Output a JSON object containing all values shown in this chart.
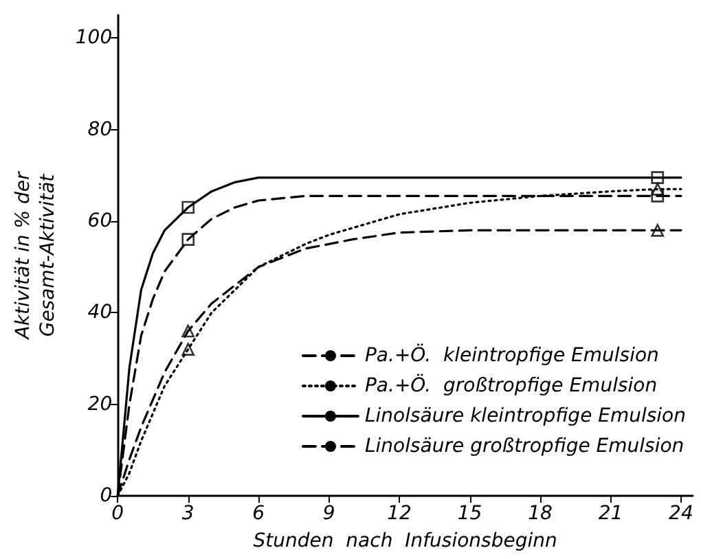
{
  "chart_data": {
    "type": "line",
    "xlabel": "Stunden  nach  Infusionsbeginn",
    "ylabel": "Aktivität in % der\nGesamt-Aktivität",
    "xlim": [
      0,
      24.5
    ],
    "xticks": [
      0,
      3,
      6,
      9,
      12,
      15,
      18,
      21,
      24
    ],
    "ylim": [
      0,
      105
    ],
    "yticks": [
      0,
      20,
      40,
      60,
      80,
      100
    ],
    "grid": false,
    "legend": "bottom right",
    "series": [
      {
        "name": "Pa.+Ö.  kleintropfige Emulsion",
        "color": "#000000",
        "line_style": "dashed",
        "marker": "none",
        "x": [
          0,
          0.5,
          1,
          2,
          3,
          4,
          5,
          6,
          8,
          9,
          10,
          12,
          15,
          23,
          24
        ],
        "values": [
          0,
          8,
          15,
          27,
          36,
          42,
          46,
          50,
          54,
          55,
          56,
          57.5,
          58,
          58,
          58
        ]
      },
      {
        "name": "Pa.+Ö.  großtropfige Emulsion",
        "color": "#000000",
        "line_style": "dotted",
        "marker": "none",
        "x": [
          0,
          0.5,
          1,
          2,
          3,
          4,
          5,
          6,
          8,
          9,
          10,
          12,
          15,
          18,
          21,
          23,
          24
        ],
        "values": [
          0,
          5,
          12,
          24,
          32,
          40,
          45,
          50,
          55,
          57,
          58.5,
          61.5,
          64,
          65.5,
          66.5,
          67,
          67
        ]
      },
      {
        "name": "Linolsäure kleintropfige Emulsion",
        "color": "#000000",
        "line_style": "solid",
        "marker": "none",
        "x": [
          0,
          0.5,
          1,
          1.5,
          2,
          3,
          4,
          5,
          6,
          7,
          23,
          24
        ],
        "values": [
          0,
          28,
          45,
          53,
          58,
          63,
          66.5,
          68.5,
          69.5,
          69.5,
          69.5,
          69.5
        ]
      },
      {
        "name": "Linolsäure großtropfige Emulsion",
        "color": "#000000",
        "line_style": "dashed",
        "marker": "none",
        "x": [
          0,
          0.5,
          1,
          1.5,
          2,
          3,
          4,
          5,
          6,
          7,
          8,
          23,
          24
        ],
        "values": [
          0,
          20,
          35,
          43,
          49,
          56,
          60.5,
          63,
          64.5,
          65,
          65.5,
          65.5,
          65.5
        ]
      },
      {
        "type": "scatter",
        "color": "#000000",
        "marker": "square",
        "x": [
          3,
          23
        ],
        "values": [
          63,
          69.5
        ]
      },
      {
        "type": "scatter",
        "color": "#000000",
        "marker": "square",
        "x": [
          3,
          23
        ],
        "values": [
          56,
          65.5
        ]
      },
      {
        "type": "scatter",
        "color": "#000000",
        "marker": "triangle",
        "x": [
          3,
          23
        ],
        "values": [
          36,
          58
        ]
      },
      {
        "type": "scatter",
        "color": "#000000",
        "marker": "triangle",
        "x": [
          3,
          23
        ],
        "values": [
          32,
          67
        ]
      }
    ]
  }
}
